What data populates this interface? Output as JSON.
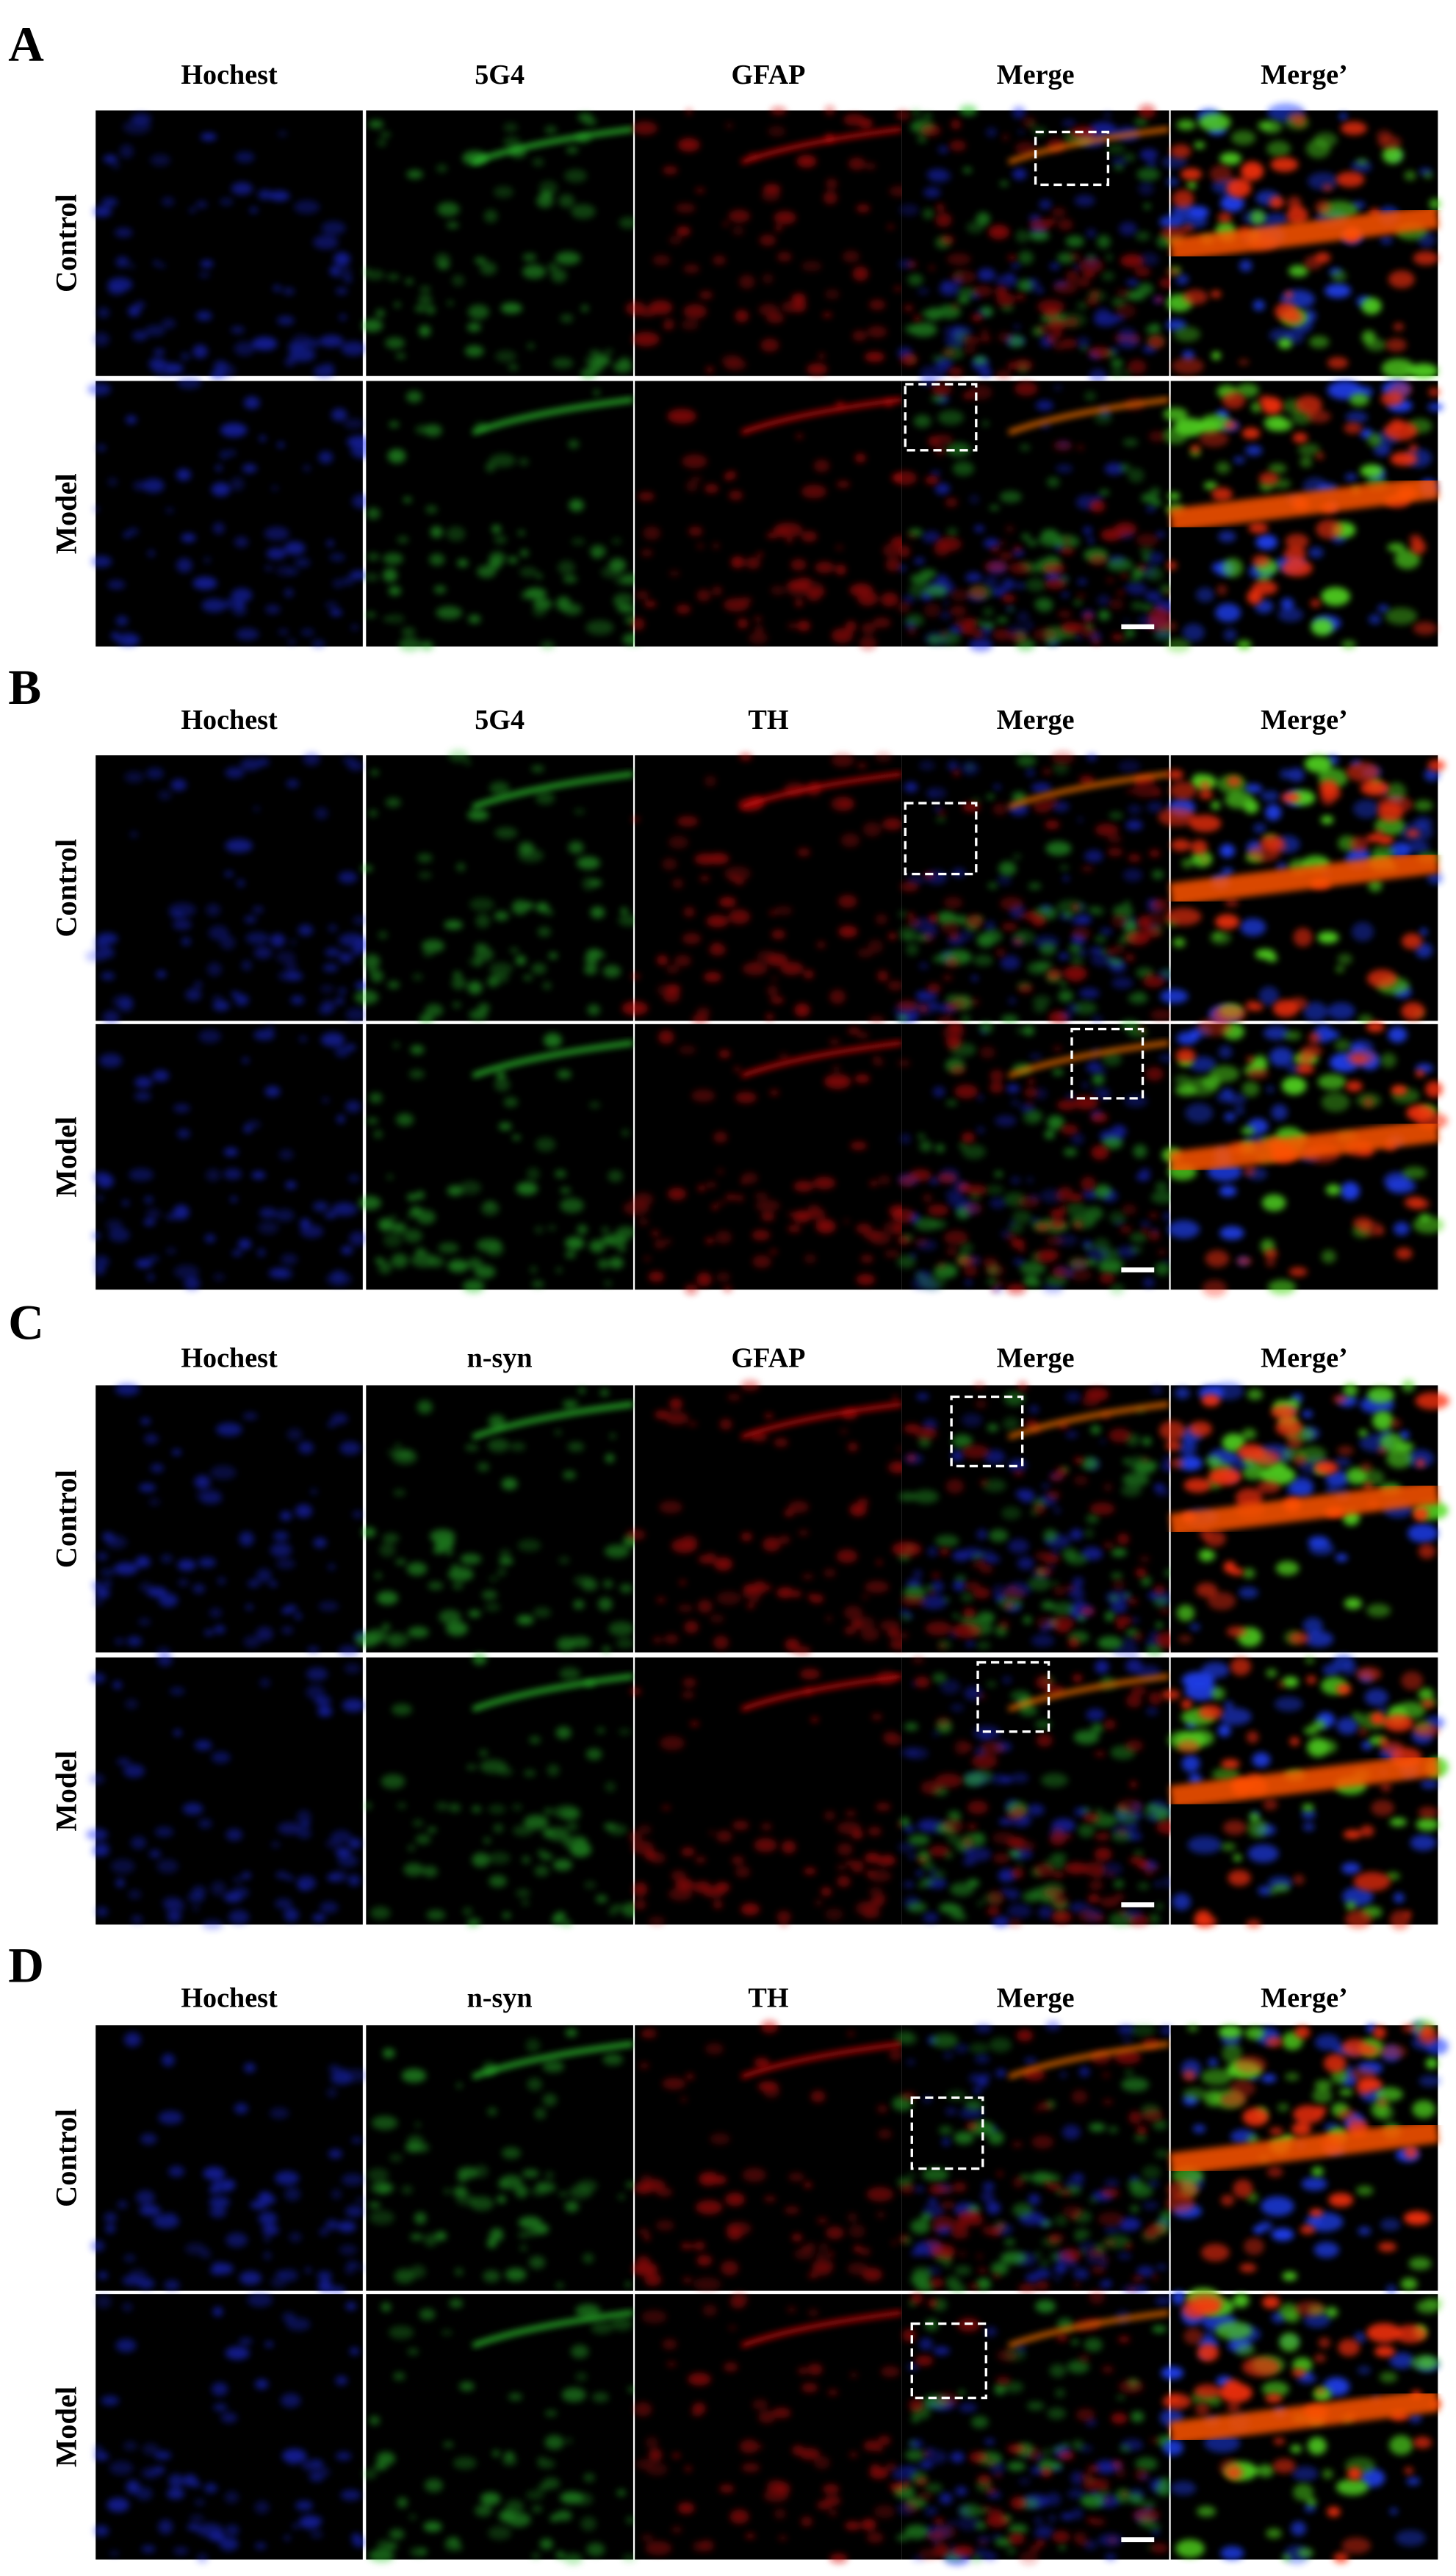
{
  "panels": [
    {
      "label": "A",
      "columns": [
        "Hochest",
        "5G4",
        "GFAP",
        "Merge",
        "Merge’"
      ],
      "rows": [
        "Control",
        "Model"
      ]
    },
    {
      "label": "B",
      "columns": [
        "Hochest",
        "5G4",
        "TH",
        "Merge",
        "Merge’"
      ],
      "rows": [
        "Control",
        "Model"
      ]
    },
    {
      "label": "C",
      "columns": [
        "Hochest",
        "n-syn",
        "GFAP",
        "Merge",
        "Merge’"
      ],
      "rows": [
        "Control",
        "Model"
      ]
    },
    {
      "label": "D",
      "columns": [
        "Hochest",
        "n-syn",
        "TH",
        "Merge",
        "Merge’"
      ],
      "rows": [
        "Control",
        "Model"
      ]
    }
  ]
}
